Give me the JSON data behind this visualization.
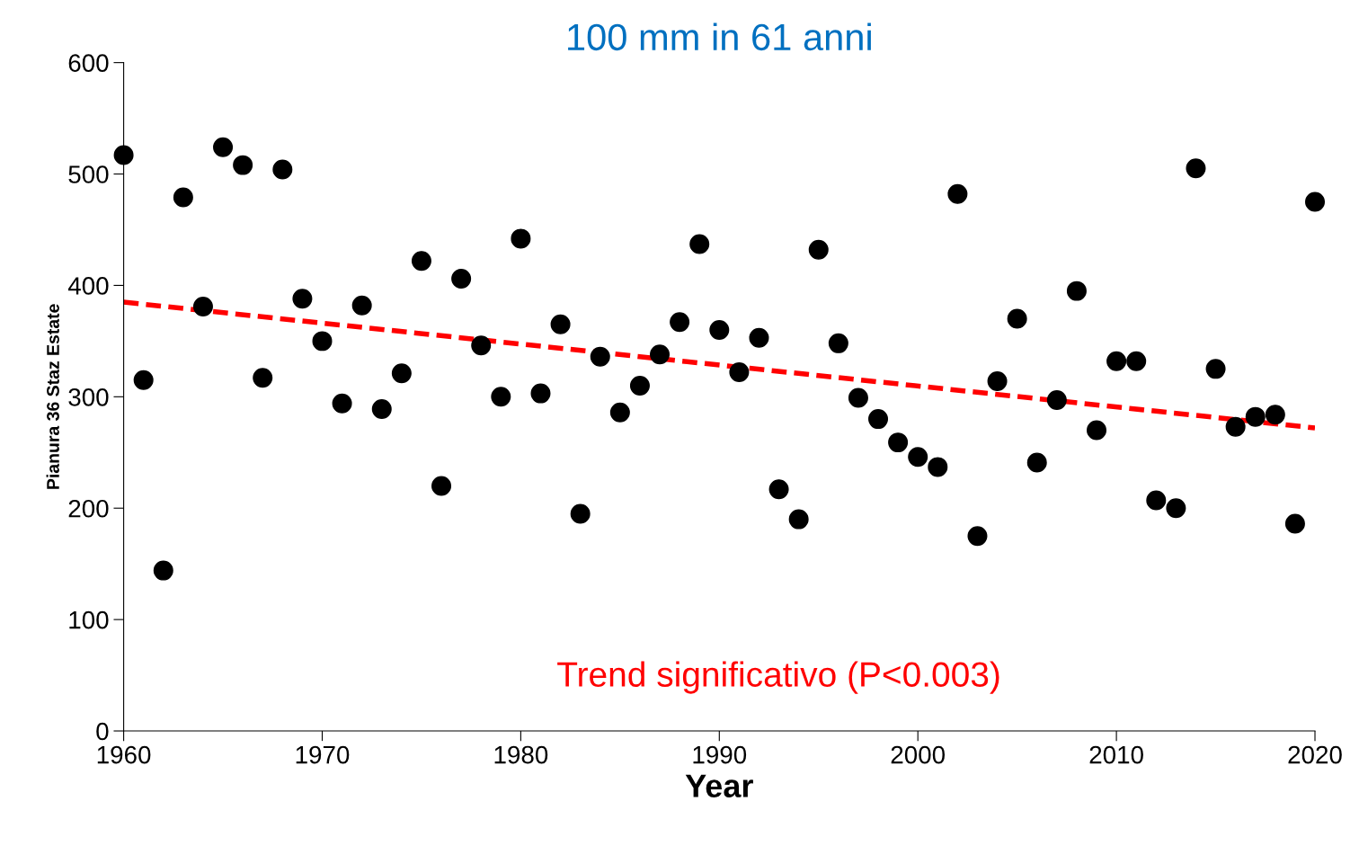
{
  "chart_data": {
    "type": "scatter",
    "title": "100 mm in 61 anni",
    "xlabel": "Year",
    "ylabel": "Pianura 36 Staz Estate",
    "annotations": [
      "Trend significativo (P<0.003)"
    ],
    "x": [
      1960,
      1961,
      1962,
      1963,
      1964,
      1965,
      1966,
      1967,
      1968,
      1969,
      1970,
      1971,
      1972,
      1973,
      1974,
      1975,
      1976,
      1977,
      1978,
      1979,
      1980,
      1981,
      1982,
      1983,
      1984,
      1985,
      1986,
      1987,
      1988,
      1989,
      1990,
      1991,
      1992,
      1993,
      1994,
      1995,
      1996,
      1997,
      1998,
      1999,
      2000,
      2001,
      2002,
      2003,
      2004,
      2005,
      2006,
      2007,
      2008,
      2009,
      2010,
      2011,
      2012,
      2013,
      2014,
      2015,
      2016,
      2017,
      2018,
      2019,
      2020
    ],
    "series": [
      {
        "color": "#000000",
        "marker": "circle",
        "values": [
          517,
          315,
          144,
          479,
          381,
          524,
          508,
          317,
          504,
          388,
          350,
          294,
          382,
          289,
          321,
          422,
          220,
          406,
          346,
          300,
          442,
          303,
          365,
          195,
          336,
          286,
          310,
          338,
          367,
          437,
          360,
          322,
          353,
          217,
          190,
          432,
          348,
          299,
          280,
          259,
          246,
          237,
          482,
          175,
          314,
          370,
          241,
          297,
          395,
          270,
          332,
          332,
          207,
          200,
          505,
          325,
          273,
          282,
          284,
          186,
          475
        ]
      },
      {
        "type": "line",
        "color": "#ff0000",
        "line_style": "dashed",
        "x": [
          1960,
          2020
        ],
        "values": [
          385,
          272
        ]
      }
    ],
    "xlim": [
      1960,
      2020
    ],
    "xticks": [
      1960,
      1970,
      1980,
      1990,
      2000,
      2010,
      2020
    ],
    "ylim": [
      0,
      600
    ],
    "yticks": [
      0,
      100,
      200,
      300,
      400,
      500,
      600
    ],
    "grid": false
  }
}
